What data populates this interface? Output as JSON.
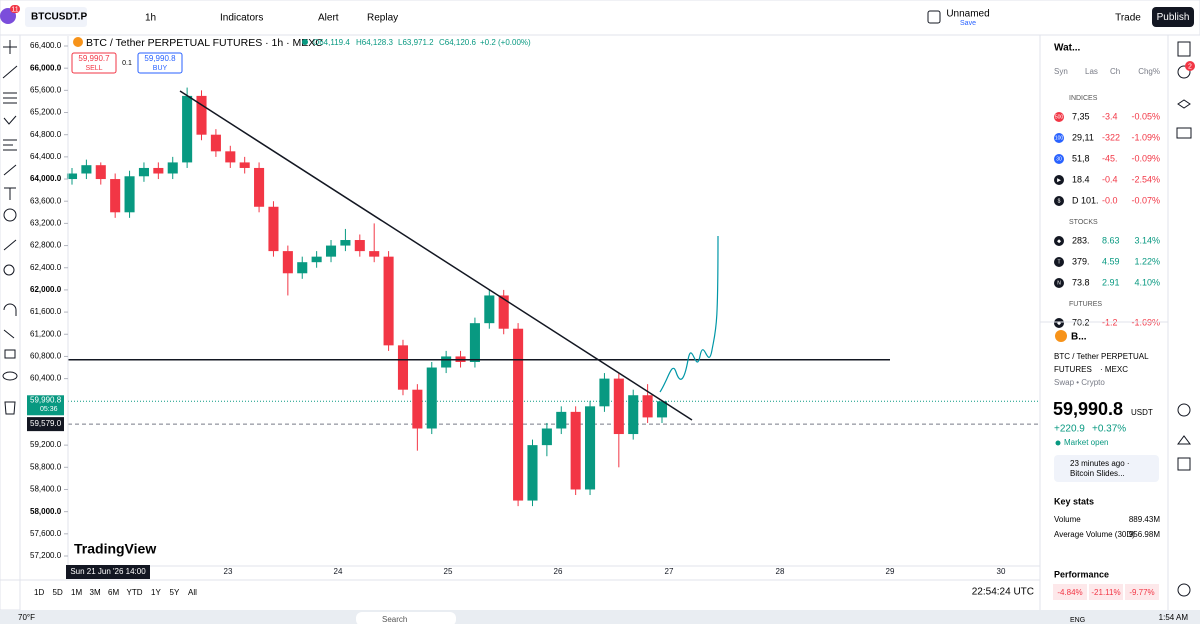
{
  "toolbar": {
    "badge": "11",
    "symbol": "BTCUSDT.P",
    "interval": "1h",
    "indicators": "Indicators",
    "alert": "Alert",
    "replay": "Replay",
    "layout_name": "Unnamed",
    "save": "Save",
    "trade": "Trade",
    "publish": "Publish"
  },
  "legend": {
    "title": "BTC / Tether PERPETUAL FUTURES · 1h · MEXC",
    "open": "O64,119.4",
    "high": "H64,128.3",
    "low": "L63,971.2",
    "close": "C64,120.6",
    "change": "+0.2 (+0.00%)"
  },
  "order_panel": {
    "sell_price": "59,990.7",
    "sell": "SELL",
    "qty": "0.1",
    "buy_price": "59,990.8",
    "buy": "BUY"
  },
  "chart": {
    "price_ticks": [
      {
        "value": 66400,
        "label": "66,400.0"
      },
      {
        "value": 66000,
        "label": "66,000.0"
      },
      {
        "value": 65600,
        "label": "65,600.0"
      },
      {
        "value": 65200,
        "label": "65,200.0"
      },
      {
        "value": 64800,
        "label": "64,800.0"
      },
      {
        "value": 64400,
        "label": "64,400.0"
      },
      {
        "value": 64000,
        "label": "64,000.0"
      },
      {
        "value": 63600,
        "label": "63,600.0"
      },
      {
        "value": 63200,
        "label": "63,200.0"
      },
      {
        "value": 62800,
        "label": "62,800.0"
      },
      {
        "value": 62400,
        "label": "62,400.0"
      },
      {
        "value": 62000,
        "label": "62,000.0"
      },
      {
        "value": 61600,
        "label": "61,600.0"
      },
      {
        "value": 61200,
        "label": "61,200.0"
      },
      {
        "value": 60800,
        "label": "60,800.0"
      },
      {
        "value": 60400,
        "label": "60,400.0"
      },
      {
        "value": 59200,
        "label": "59,200.0"
      },
      {
        "value": 58800,
        "label": "58,800.0"
      },
      {
        "value": 58400,
        "label": "58,400.0"
      },
      {
        "value": 58000,
        "label": "58,000.0"
      },
      {
        "value": 57600,
        "label": "57,600.0"
      },
      {
        "value": 57200,
        "label": "57,200.0"
      }
    ],
    "last_price": {
      "value": 59990.8,
      "label": "59,990.8",
      "countdown": "05:36"
    },
    "cursor_price": {
      "value": 59579,
      "label": "59,579.0"
    },
    "level_line": 60740,
    "candles": [
      [
        64000,
        64200,
        63900,
        64100
      ],
      [
        64100,
        64350,
        64000,
        64250
      ],
      [
        64250,
        64300,
        63900,
        64000
      ],
      [
        64000,
        64100,
        63300,
        63400
      ],
      [
        63400,
        64150,
        63300,
        64050
      ],
      [
        64050,
        64300,
        63950,
        64200
      ],
      [
        64200,
        64300,
        64000,
        64100
      ],
      [
        64100,
        64400,
        64000,
        64300
      ],
      [
        64300,
        65650,
        64200,
        65500
      ],
      [
        65500,
        65600,
        64700,
        64800
      ],
      [
        64800,
        64900,
        64400,
        64500
      ],
      [
        64500,
        64600,
        64200,
        64300
      ],
      [
        64300,
        64400,
        64100,
        64200
      ],
      [
        64200,
        64300,
        63400,
        63500
      ],
      [
        63500,
        63600,
        62600,
        62700
      ],
      [
        62700,
        62800,
        61900,
        62300
      ],
      [
        62300,
        62600,
        62200,
        62500
      ],
      [
        62500,
        62700,
        62400,
        62600
      ],
      [
        62600,
        62900,
        62500,
        62800
      ],
      [
        62800,
        63100,
        62700,
        62900
      ],
      [
        62900,
        63000,
        62600,
        62700
      ],
      [
        62700,
        63200,
        62500,
        62600
      ],
      [
        62600,
        62700,
        60900,
        61000
      ],
      [
        61000,
        61100,
        60100,
        60200
      ],
      [
        60200,
        60300,
        59100,
        59500
      ],
      [
        59500,
        60700,
        59400,
        60600
      ],
      [
        60600,
        60900,
        60500,
        60800
      ],
      [
        60800,
        60900,
        60600,
        60700
      ],
      [
        60700,
        61500,
        60600,
        61400
      ],
      [
        61400,
        62000,
        61300,
        61900
      ],
      [
        61900,
        62000,
        61200,
        61300
      ],
      [
        61300,
        61400,
        58100,
        58200
      ],
      [
        58200,
        59300,
        58100,
        59200
      ],
      [
        59200,
        59600,
        59000,
        59500
      ],
      [
        59500,
        59900,
        59400,
        59800
      ],
      [
        59800,
        59900,
        58300,
        58400
      ],
      [
        58400,
        60000,
        58300,
        59900
      ],
      [
        59900,
        60500,
        59800,
        60400
      ],
      [
        60400,
        60500,
        58800,
        59400
      ],
      [
        59400,
        60200,
        59300,
        60100
      ],
      [
        60100,
        60300,
        59600,
        59700
      ],
      [
        59700,
        60000,
        59600,
        59990.8
      ]
    ],
    "watermark": "TradingView",
    "time_labels": [
      "Sun 21 Jun '26  14:00",
      "23",
      "24",
      "25",
      "26",
      "27",
      "28",
      "29",
      "30"
    ],
    "clock": "22:54:24 UTC",
    "ranges": [
      "1D",
      "5D",
      "1M",
      "3M",
      "6M",
      "YTD",
      "1Y",
      "5Y",
      "All"
    ]
  },
  "watchlist": {
    "title": "Wat...",
    "columns": [
      "Syn",
      "Las",
      "Ch",
      "Chg%"
    ],
    "groups": [
      {
        "name": "INDICES",
        "rows": [
          {
            "icon": "500",
            "last": "7,35",
            "change": "-3.4",
            "percent": "-0.05%"
          },
          {
            "icon": "100",
            "last": "29,11",
            "change": "-322",
            "percent": "-1.09%"
          },
          {
            "icon": "30",
            "last": "51,8",
            "change": "-45.",
            "percent": "-0.09%"
          },
          {
            "icon": "▶",
            "last": "18.4",
            "change": "-0.4",
            "percent": "-2.54%"
          },
          {
            "icon": "$",
            "last": "D 101.",
            "change": "-0.0",
            "percent": "-0.07%"
          }
        ]
      },
      {
        "name": "STOCKS",
        "rows": [
          {
            "icon": "◆",
            "last": "283.",
            "change": "8.63",
            "percent": "3.14%"
          },
          {
            "icon": "T",
            "last": "379.",
            "change": "4.59",
            "percent": "1.22%"
          },
          {
            "icon": "N",
            "last": "73.8",
            "change": "2.91",
            "percent": "4.10%"
          }
        ]
      },
      {
        "name": "FUTURES",
        "rows": [
          {
            "icon": "◆",
            "last": "70.2",
            "change": "-1.2",
            "percent": "-1.69%"
          }
        ]
      }
    ]
  },
  "details": {
    "symbol": "B...",
    "name": "BTC / Tether PERPETUAL",
    "name2": "FUTURES",
    "exchange": "· MEXC",
    "kind": "Swap • Crypto",
    "price": "59,990.8",
    "currency": "USDT",
    "change": "+220.9",
    "percent": "+0.37%",
    "status": "Market open",
    "news_time": "23 minutes ago ·",
    "news_title": "Bitcoin Slides...",
    "key_stats": "Key stats",
    "volume_label": "Volume",
    "volume": "889.43M",
    "avg_label": "Average Volume (30D)",
    "avg": "956.98M",
    "performance": "Performance",
    "perf": [
      "-4.84%",
      "-21.11%",
      "-9.77%"
    ]
  },
  "side_badge": "2",
  "taskbar": {
    "weather": "70°F",
    "search": "Search",
    "lang": "ENG",
    "time": "1:54 AM"
  }
}
